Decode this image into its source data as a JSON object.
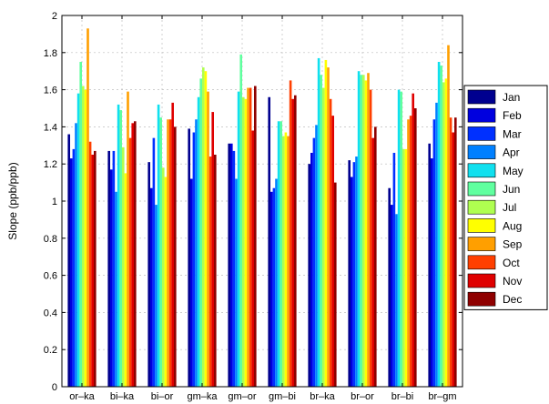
{
  "chart_data": {
    "type": "bar",
    "title": "",
    "xlabel": "",
    "ylabel": "Slope (ppb/ppb)",
    "ylim": [
      0,
      2
    ],
    "yticks": [
      0,
      0.2,
      0.4,
      0.6,
      0.8,
      1,
      1.2,
      1.4,
      1.6,
      1.8,
      2
    ],
    "grid": true,
    "legend_position": "right",
    "categories": [
      "or–ka",
      "bi–ka",
      "bi–or",
      "gm–ka",
      "gm–or",
      "gm–bi",
      "br–ka",
      "br–or",
      "br–bi",
      "br–gm"
    ],
    "series": [
      {
        "name": "Jan",
        "color": "#00008f",
        "values": [
          1.36,
          1.27,
          1.21,
          1.39,
          1.31,
          1.56,
          1.2,
          1.22,
          1.07,
          1.31
        ]
      },
      {
        "name": "Feb",
        "color": "#0000df",
        "values": [
          1.23,
          1.17,
          1.07,
          1.12,
          1.31,
          1.05,
          1.26,
          1.13,
          0.98,
          1.23
        ]
      },
      {
        "name": "Mar",
        "color": "#0030ff",
        "values": [
          1.28,
          1.27,
          1.34,
          1.37,
          1.27,
          1.07,
          1.34,
          1.21,
          1.26,
          1.44
        ]
      },
      {
        "name": "Apr",
        "color": "#0080ff",
        "values": [
          1.42,
          1.05,
          0.98,
          1.44,
          1.12,
          1.12,
          1.41,
          1.24,
          0.93,
          1.53
        ]
      },
      {
        "name": "May",
        "color": "#10e0ef",
        "values": [
          1.58,
          1.52,
          1.52,
          1.56,
          1.59,
          1.43,
          1.77,
          1.7,
          1.6,
          1.75
        ]
      },
      {
        "name": "Jun",
        "color": "#60ff9f",
        "values": [
          1.75,
          1.49,
          1.45,
          1.66,
          1.79,
          1.43,
          1.68,
          1.68,
          1.59,
          1.73
        ]
      },
      {
        "name": "Jul",
        "color": "#afff50",
        "values": [
          1.62,
          1.29,
          1.18,
          1.72,
          1.56,
          1.35,
          1.61,
          1.68,
          1.28,
          1.64
        ]
      },
      {
        "name": "Aug",
        "color": "#ffff00",
        "values": [
          1.6,
          1.15,
          1.13,
          1.7,
          1.55,
          1.37,
          1.76,
          1.65,
          1.28,
          1.66
        ]
      },
      {
        "name": "Sep",
        "color": "#ff9f00",
        "values": [
          1.93,
          1.59,
          1.44,
          1.59,
          1.61,
          1.35,
          1.72,
          1.69,
          1.44,
          1.84
        ]
      },
      {
        "name": "Oct",
        "color": "#ff3f00",
        "values": [
          1.32,
          1.34,
          1.44,
          1.24,
          1.61,
          1.65,
          1.55,
          1.6,
          1.46,
          1.45
        ]
      },
      {
        "name": "Nov",
        "color": "#df0000",
        "values": [
          1.25,
          1.42,
          1.53,
          1.48,
          1.38,
          1.55,
          1.46,
          1.34,
          1.58,
          1.37
        ]
      },
      {
        "name": "Dec",
        "color": "#8f0000",
        "values": [
          1.27,
          1.43,
          1.4,
          1.25,
          1.62,
          1.57,
          1.1,
          1.4,
          1.5,
          1.45
        ]
      }
    ]
  }
}
